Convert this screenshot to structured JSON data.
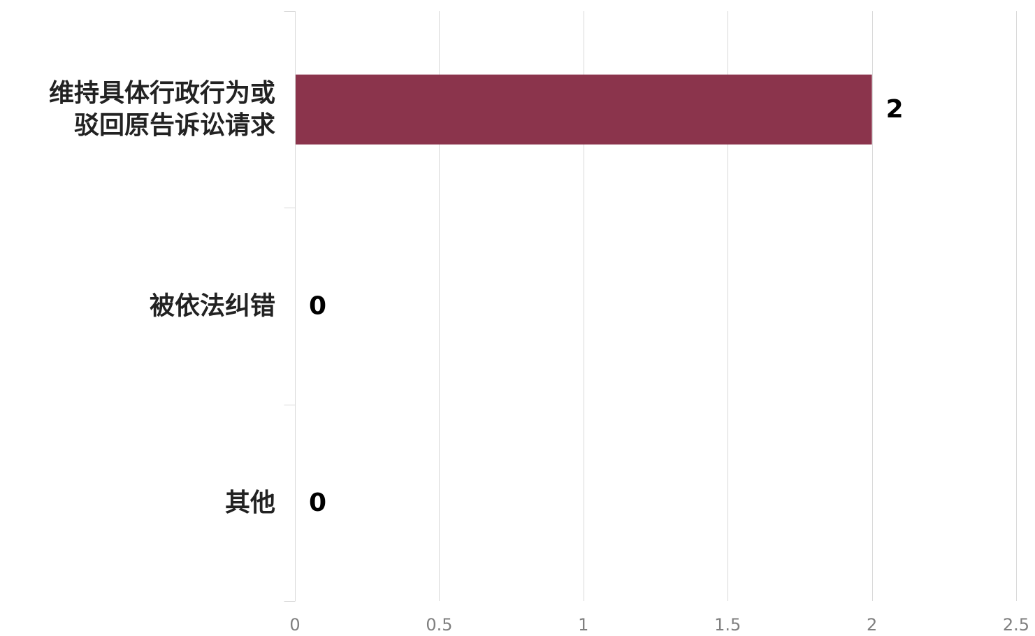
{
  "chart_data": {
    "type": "bar",
    "orientation": "horizontal",
    "title": "",
    "xlabel": "",
    "ylabel": "",
    "categories": [
      [
        "维持具体行政行为或",
        "驳回原告诉讼请求"
      ],
      [
        "被依法纠错"
      ],
      [
        "其他"
      ]
    ],
    "values": [
      2,
      0,
      0
    ],
    "data_labels": [
      "2",
      "0",
      "0"
    ],
    "xlim": [
      0,
      2.5
    ],
    "x_ticks": [
      0,
      0.5,
      1,
      1.5,
      2,
      2.5
    ],
    "x_tick_labels": [
      "0",
      "0.5",
      "1",
      "1.5",
      "2",
      "2.5"
    ],
    "grid": true,
    "legend": "none",
    "colors": {
      "bar": "#8b344c",
      "grid": "#d9d9d9",
      "tick_text": "#7f7f7f",
      "category_text": "#222222",
      "data_label_text": "#000000"
    }
  }
}
